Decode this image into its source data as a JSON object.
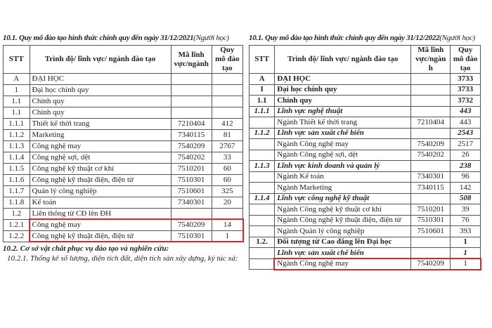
{
  "left": {
    "title": "10.1. Quy mô đào tạo hình thức chính quy đến ngày 31/12/2021",
    "title_unit": "(Người học)",
    "headers": [
      "STT",
      "Trình độ/ lĩnh vực/ ngành đào tạo",
      "Mã lĩnh vực/ngành",
      "Quy mô đào tạo"
    ],
    "rows": [
      {
        "stt": "A",
        "name": "ĐẠI HỌC",
        "code": "",
        "qty": ""
      },
      {
        "stt": "1",
        "name": "Đại học chính quy",
        "code": "",
        "qty": ""
      },
      {
        "stt": "1.1",
        "name": "Chính quy",
        "code": "",
        "qty": ""
      },
      {
        "stt": "1.1",
        "name": "Chính quy",
        "code": "",
        "qty": ""
      },
      {
        "stt": "1.1.1",
        "name": "Thiết kế thời trang",
        "code": "7210404",
        "qty": "412"
      },
      {
        "stt": "1.1.2",
        "name": "Marketing",
        "code": "7340115",
        "qty": "81"
      },
      {
        "stt": "1.1.3",
        "name": "Công nghệ may",
        "code": "7540209",
        "qty": "2767"
      },
      {
        "stt": "1.1.4",
        "name": "Công nghệ sợi, dệt",
        "code": "7540202",
        "qty": "33"
      },
      {
        "stt": "1.1.5",
        "name": "Công nghệ kỹ thuật cơ khí",
        "code": "7510201",
        "qty": "60"
      },
      {
        "stt": "1.1.6",
        "name": "Công nghệ kỹ thuật điện, điện tử",
        "code": "7510301",
        "qty": "60"
      },
      {
        "stt": "1.1.7",
        "name": "Quản lý công nghiệp",
        "code": "7510601",
        "qty": "325"
      },
      {
        "stt": "1.1.8",
        "name": "Kế toán",
        "code": "7340301",
        "qty": "20"
      },
      {
        "stt": "1.2",
        "name": "Liên thông từ CĐ lên ĐH",
        "code": "",
        "qty": ""
      },
      {
        "stt": "1.2.1",
        "name": "Công nghệ may",
        "code": "7540209",
        "qty": "14"
      },
      {
        "stt": "1.2.2",
        "name": "Công nghệ kỹ thuật điện, điện tử",
        "code": "7510301",
        "qty": "1"
      }
    ],
    "section_heading": "10.2.  Cơ sở vật chất phục vụ đào tạo và nghiên cứu:",
    "subsection": "10.2.1. Thống kê số lượng, diện tích đất, diện tích sàn xây dựng, ký túc xá:"
  },
  "right": {
    "title": "10.1. Quy mô đào tạo hình thức chính quy đến ngày 31/12/2022",
    "title_unit": "(Người học)",
    "headers": [
      "STT",
      "Trình độ/ lĩnh vực/ ngành đào tạo",
      "Mã lĩnh vực/ngành",
      "Quy mô đào tạo"
    ],
    "rows": [
      {
        "stt": "A",
        "name": "ĐẠI HỌC",
        "code": "",
        "qty": "3733",
        "style": "b"
      },
      {
        "stt": "I",
        "name": "Đại học chính quy",
        "code": "",
        "qty": "3733",
        "style": "b"
      },
      {
        "stt": "1.1",
        "name": "Chính quy",
        "code": "",
        "qty": "3732",
        "style": "b"
      },
      {
        "stt": "1.1.1",
        "name": "Lĩnh vực nghệ thuật",
        "code": "",
        "qty": "443",
        "style": "bi"
      },
      {
        "stt": "",
        "name": "Ngành Thiết kế thời trang",
        "code": "7210404",
        "qty": "443",
        "style": ""
      },
      {
        "stt": "1.1.2",
        "name": "Lĩnh vực sản xuất chế biến",
        "code": "",
        "qty": "2543",
        "style": "bi"
      },
      {
        "stt": "",
        "name": "Ngành Công nghệ may",
        "code": "7540209",
        "qty": "2517",
        "style": ""
      },
      {
        "stt": "",
        "name": "Ngành Công nghệ sợi, dệt",
        "code": "7540202",
        "qty": "26",
        "style": ""
      },
      {
        "stt": "1.1.3",
        "name": "Lĩnh vực kinh doanh và quản lý",
        "code": "",
        "qty": "238",
        "style": "bi"
      },
      {
        "stt": "",
        "name": "Ngành Kế toán",
        "code": "7340301",
        "qty": "96",
        "style": ""
      },
      {
        "stt": "",
        "name": "Ngành Marketing",
        "code": "7340115",
        "qty": "142",
        "style": ""
      },
      {
        "stt": "1.1.4",
        "name": "Lĩnh vực công nghệ kỹ thuật",
        "code": "",
        "qty": "508",
        "style": "bi"
      },
      {
        "stt": "",
        "name": "Ngành Công nghệ kỹ thuật cơ khí",
        "code": "7510201",
        "qty": "39",
        "style": ""
      },
      {
        "stt": "",
        "name": "Ngành Công nghệ kỹ thuật điện, điện tử",
        "code": "7510301",
        "qty": "76",
        "style": ""
      },
      {
        "stt": "",
        "name": "Ngành Quản lý công nghiệp",
        "code": "7510601",
        "qty": "393",
        "style": ""
      },
      {
        "stt": "1.2.",
        "name": "Đối tượng từ Cao đẳng lên Đại học",
        "code": "",
        "qty": "1",
        "style": "b"
      },
      {
        "stt": "",
        "name": "Lĩnh vực sản xuất chế biến",
        "code": "",
        "qty": "1",
        "style": "bi"
      },
      {
        "stt": "",
        "name": "Ngành Công nghệ may",
        "code": "7540209",
        "qty": "1",
        "style": ""
      }
    ]
  },
  "highlight_color": "#e0262b"
}
